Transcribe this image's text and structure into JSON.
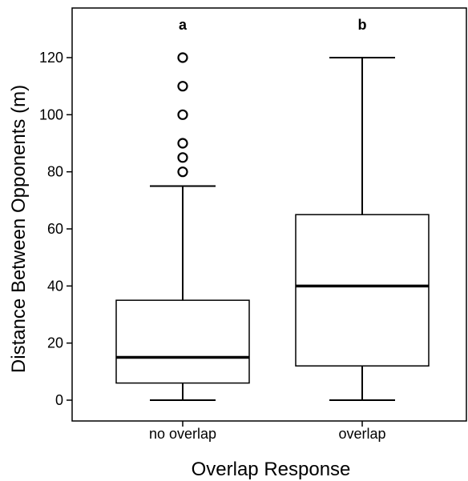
{
  "chart_data": {
    "type": "boxplot",
    "xlabel": "Overlap Response",
    "ylabel": "Distance Between Opponents (m)",
    "ylim": [
      -7,
      137
    ],
    "yticks": [
      0,
      20,
      40,
      60,
      80,
      100,
      120
    ],
    "grid": false,
    "categories": [
      "no overlap",
      "overlap"
    ],
    "groups": [
      {
        "category": "no overlap",
        "letter": "a",
        "whisker_low": 0,
        "q1": 6,
        "median": 15,
        "q3": 35,
        "whisker_high": 75,
        "outliers": [
          80,
          85,
          90,
          100,
          110,
          120
        ]
      },
      {
        "category": "overlap",
        "letter": "b",
        "whisker_low": 0,
        "q1": 12,
        "median": 40,
        "q3": 65,
        "whisker_high": 120,
        "outliers": []
      }
    ]
  }
}
